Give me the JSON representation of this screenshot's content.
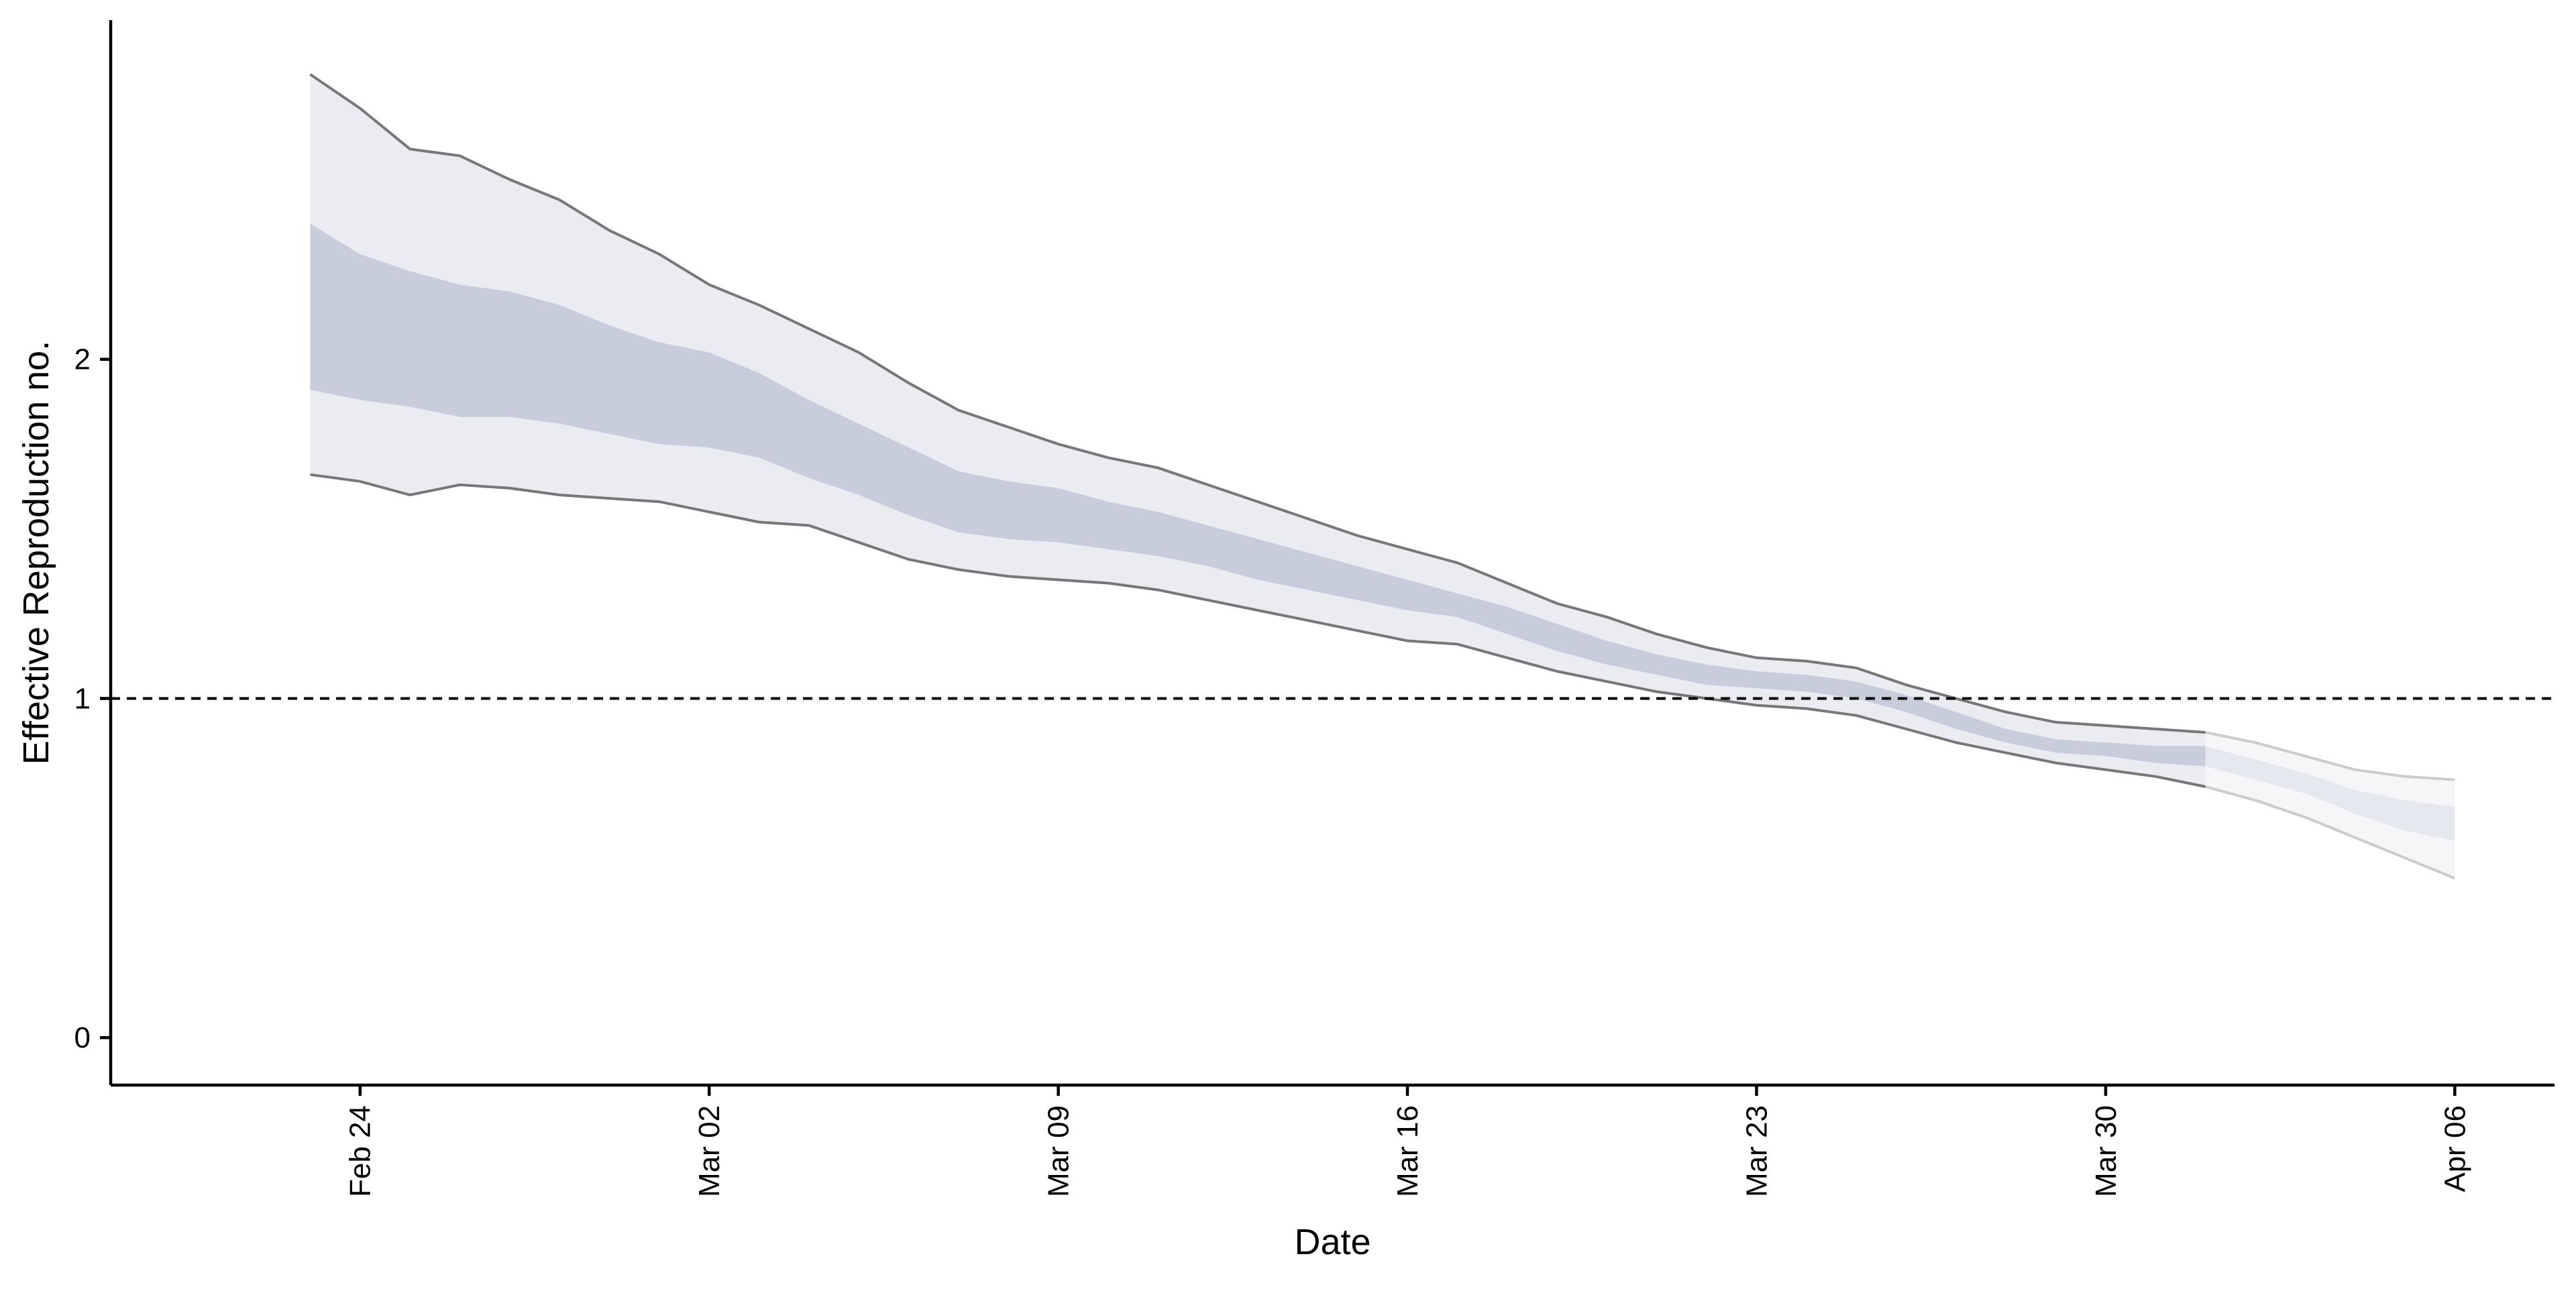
{
  "chart_data": {
    "type": "area",
    "xlabel": "Date",
    "ylabel": "Effective Reproduction no.",
    "ylim": [
      -0.14,
      3.0
    ],
    "xlim": [
      "2020-02-19",
      "2020-04-08"
    ],
    "y_ticks": [
      0,
      1,
      2
    ],
    "x_ticks": [
      {
        "date": "2020-02-24",
        "label": "Feb 24"
      },
      {
        "date": "2020-03-02",
        "label": "Mar 02"
      },
      {
        "date": "2020-03-09",
        "label": "Mar 09"
      },
      {
        "date": "2020-03-16",
        "label": "Mar 16"
      },
      {
        "date": "2020-03-23",
        "label": "Mar 23"
      },
      {
        "date": "2020-03-30",
        "label": "Mar 30"
      },
      {
        "date": "2020-04-06",
        "label": "Apr 06"
      }
    ],
    "reference_line": {
      "y": 1,
      "style": "dashed"
    },
    "grid": false,
    "legend": "none",
    "colors": {
      "outer_band": "#ebecf2",
      "inner_band": "#c8cddc",
      "outer_band_forecast": "#f6f6f8",
      "inner_band_forecast": "#e6e8ef",
      "bound_line": "#777777",
      "bound_line_forecast": "#cccccc",
      "axis": "#000000"
    },
    "estimate_end_date": "2020-04-01",
    "series": [
      {
        "x": [
          "2020-02-23",
          "2020-02-24",
          "2020-02-25",
          "2020-02-26",
          "2020-02-27",
          "2020-02-28",
          "2020-02-29",
          "2020-03-01",
          "2020-03-02",
          "2020-03-03",
          "2020-03-04",
          "2020-03-05",
          "2020-03-06",
          "2020-03-07",
          "2020-03-08",
          "2020-03-09",
          "2020-03-10",
          "2020-03-11",
          "2020-03-12",
          "2020-03-13",
          "2020-03-14",
          "2020-03-15",
          "2020-03-16",
          "2020-03-17",
          "2020-03-18",
          "2020-03-19",
          "2020-03-20",
          "2020-03-21",
          "2020-03-22",
          "2020-03-23",
          "2020-03-24",
          "2020-03-25",
          "2020-03-26",
          "2020-03-27",
          "2020-03-28",
          "2020-03-29",
          "2020-03-30",
          "2020-03-31",
          "2020-04-01",
          "2020-04-02",
          "2020-04-03",
          "2020-04-04",
          "2020-04-05",
          "2020-04-06"
        ],
        "upper_90": [
          2.84,
          2.74,
          2.62,
          2.6,
          2.53,
          2.47,
          2.38,
          2.31,
          2.22,
          2.16,
          2.09,
          2.02,
          1.93,
          1.85,
          1.8,
          1.75,
          1.71,
          1.68,
          1.63,
          1.58,
          1.53,
          1.48,
          1.44,
          1.4,
          1.34,
          1.28,
          1.24,
          1.19,
          1.15,
          1.12,
          1.11,
          1.09,
          1.04,
          1.0,
          0.96,
          0.93,
          0.92,
          0.91,
          0.9,
          0.87,
          0.83,
          0.79,
          0.77,
          0.76
        ],
        "upper_50": [
          2.4,
          2.31,
          2.26,
          2.22,
          2.2,
          2.16,
          2.1,
          2.05,
          2.02,
          1.96,
          1.88,
          1.81,
          1.74,
          1.67,
          1.64,
          1.62,
          1.58,
          1.55,
          1.51,
          1.47,
          1.43,
          1.39,
          1.35,
          1.31,
          1.27,
          1.22,
          1.17,
          1.13,
          1.1,
          1.08,
          1.07,
          1.05,
          1.01,
          0.96,
          0.91,
          0.88,
          0.87,
          0.86,
          0.86,
          0.82,
          0.78,
          0.73,
          0.7,
          0.68
        ],
        "lower_50": [
          1.91,
          1.88,
          1.86,
          1.83,
          1.83,
          1.81,
          1.78,
          1.75,
          1.74,
          1.71,
          1.65,
          1.6,
          1.54,
          1.49,
          1.47,
          1.46,
          1.44,
          1.42,
          1.39,
          1.35,
          1.32,
          1.29,
          1.26,
          1.24,
          1.19,
          1.14,
          1.1,
          1.07,
          1.04,
          1.03,
          1.02,
          1.0,
          0.96,
          0.91,
          0.87,
          0.84,
          0.83,
          0.81,
          0.8,
          0.76,
          0.72,
          0.66,
          0.61,
          0.58
        ],
        "lower_90": [
          1.66,
          1.64,
          1.6,
          1.63,
          1.62,
          1.6,
          1.59,
          1.58,
          1.55,
          1.52,
          1.51,
          1.46,
          1.41,
          1.38,
          1.36,
          1.35,
          1.34,
          1.32,
          1.29,
          1.26,
          1.23,
          1.2,
          1.17,
          1.16,
          1.12,
          1.08,
          1.05,
          1.02,
          1.0,
          0.98,
          0.97,
          0.95,
          0.91,
          0.87,
          0.84,
          0.81,
          0.79,
          0.77,
          0.74,
          0.7,
          0.65,
          0.59,
          0.53,
          0.47
        ]
      }
    ]
  }
}
